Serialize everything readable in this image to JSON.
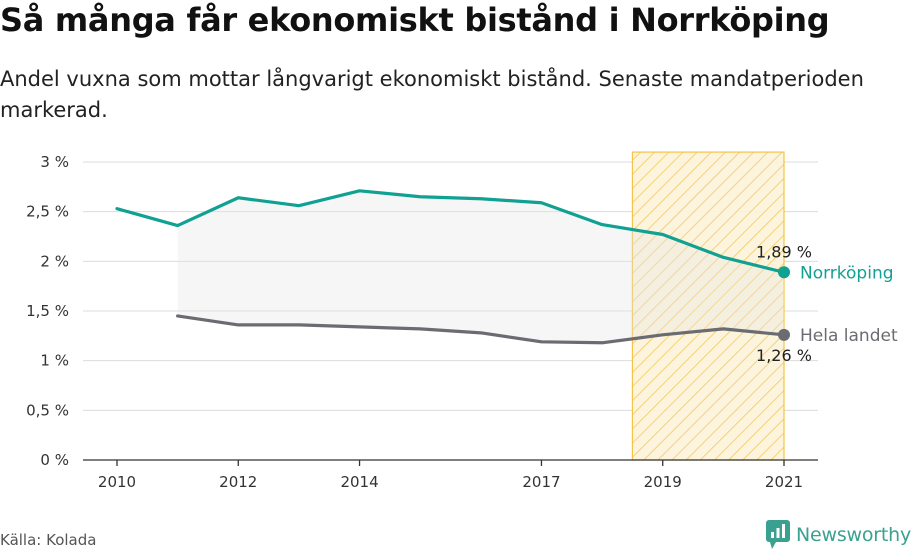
{
  "title": "Så många får ekonomiskt bistånd i Norrköping",
  "subtitle": "Andel vuxna som mottar långvarigt ekonomiskt bistånd. Senaste mandatperioden markerad.",
  "source": "Källa: Kolada",
  "brand": "Newsworthy",
  "colors": {
    "norrkoping": "#11a192",
    "hela_landet": "#6b6b72",
    "highlight": "#f3c041",
    "gap_fill": "#ececec"
  },
  "chart_data": {
    "type": "line",
    "x": [
      2010,
      2011,
      2012,
      2013,
      2014,
      2015,
      2016,
      2017,
      2018,
      2019,
      2020,
      2021
    ],
    "x_ticks": [
      2010,
      2012,
      2014,
      2017,
      2019,
      2021
    ],
    "x_tick_labels": [
      "2010",
      "2012",
      "2014",
      "2017",
      "2019",
      "2021"
    ],
    "y_ticks": [
      0,
      0.5,
      1,
      1.5,
      2,
      2.5,
      3
    ],
    "y_tick_labels": [
      "0 %",
      "0,5 %",
      "1 %",
      "1,5 %",
      "2 %",
      "2,5 %",
      "3 %"
    ],
    "ylim": [
      0,
      3
    ],
    "grid": true,
    "highlight_period": [
      2018.5,
      2021
    ],
    "series": [
      {
        "name": "Norrköping",
        "values": [
          2.53,
          2.36,
          2.64,
          2.56,
          2.71,
          2.65,
          2.63,
          2.59,
          2.37,
          2.27,
          2.04,
          1.89
        ],
        "end_label": "1,89 %"
      },
      {
        "name": "Hela landet",
        "values": [
          null,
          1.45,
          1.36,
          1.36,
          1.34,
          1.32,
          1.28,
          1.19,
          1.18,
          1.26,
          1.32,
          1.26
        ],
        "end_label": "1,26 %"
      }
    ]
  }
}
